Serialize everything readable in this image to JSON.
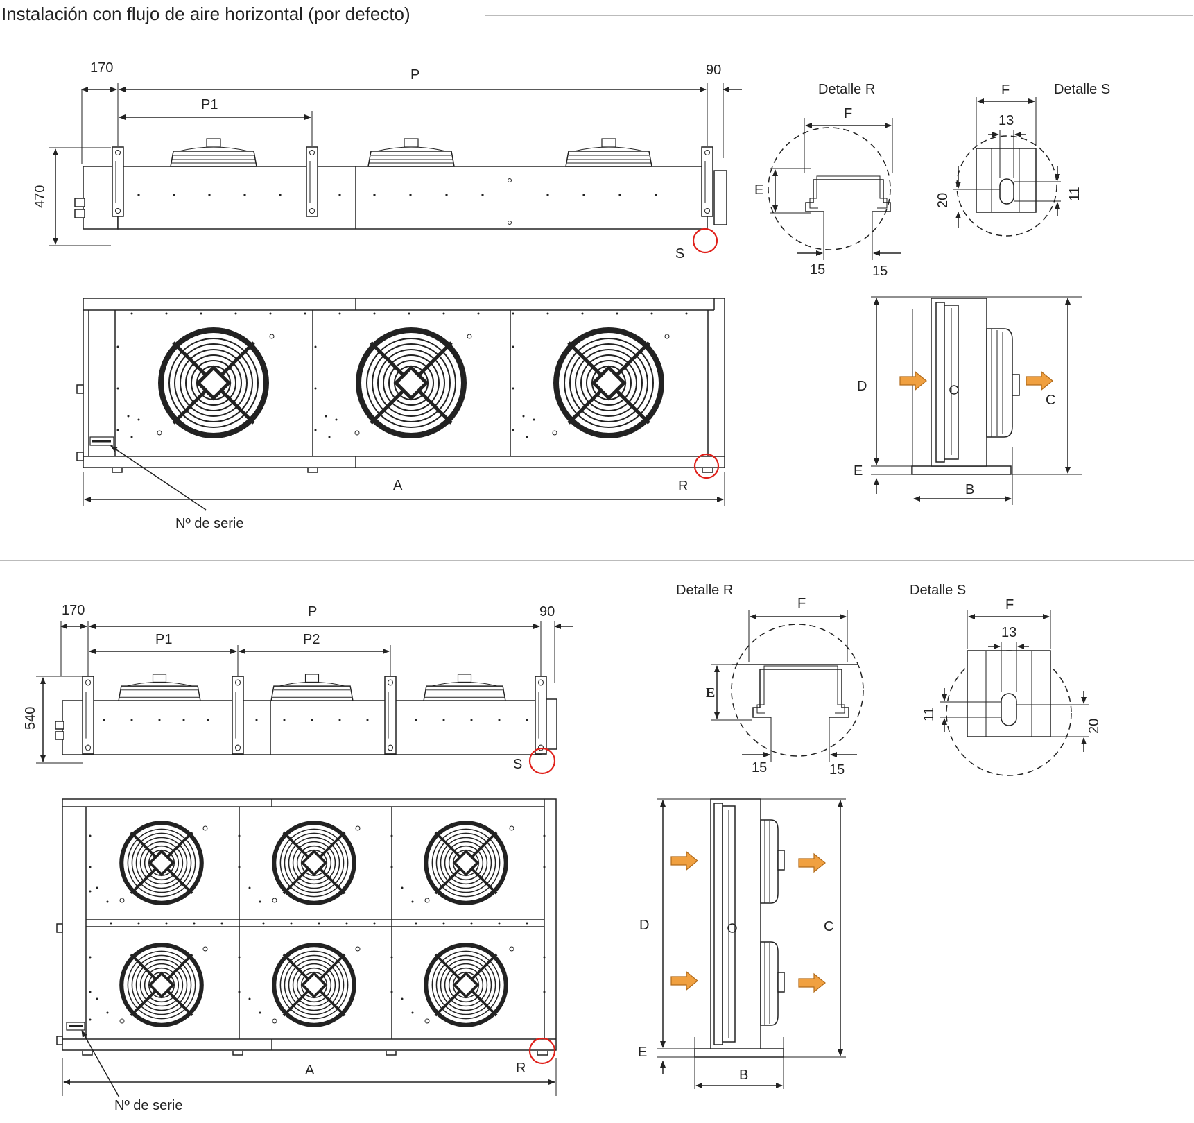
{
  "title": "Instalación con flujo de aire horizontal (por defecto)",
  "colors": {
    "highlight_circle": "#e0201a",
    "airflow_arrow": "#f0a040",
    "separator": "#bbbbbb"
  },
  "top": {
    "dims": {
      "left": "170",
      "pitch": "P",
      "pitch1": "P1",
      "right": "90",
      "height": "470"
    },
    "labels": {
      "s": "S",
      "r": "R",
      "a": "A",
      "serial": "Nº de serie"
    },
    "detail_r": {
      "title": "Detalle R",
      "f": "F",
      "e": "E",
      "w1": "15",
      "w2": "15"
    },
    "detail_s": {
      "title": "Detalle S",
      "f": "F",
      "slot_w": "13",
      "h20": "20",
      "h11": "11"
    },
    "side": {
      "d": "D",
      "c": "C",
      "e": "E",
      "b": "B"
    }
  },
  "bottom": {
    "dims": {
      "left": "170",
      "pitch": "P",
      "pitch1": "P1",
      "pitch2": "P2",
      "right": "90",
      "height": "540"
    },
    "labels": {
      "s": "S",
      "r": "R",
      "a": "A",
      "serial": "Nº de serie"
    },
    "detail_r": {
      "title": "Detalle R",
      "f": "F",
      "e": "E",
      "w1": "15",
      "w2": "15"
    },
    "detail_s": {
      "title": "Detalle S",
      "f": "F",
      "slot_w": "13",
      "h11": "11",
      "h20": "20"
    },
    "side": {
      "d": "D",
      "c": "C",
      "e": "E",
      "b": "B"
    }
  }
}
